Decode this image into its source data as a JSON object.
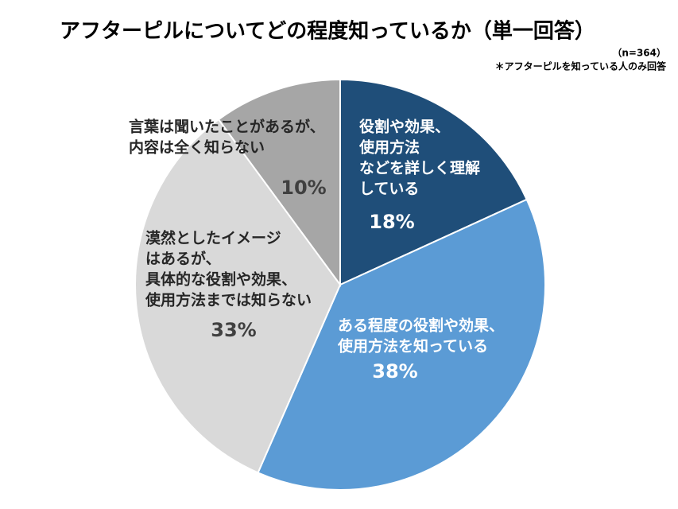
{
  "chart_data": {
    "type": "pie",
    "title": "アフターピルについてどの程度知っているか（単一回答）",
    "subtitle": [
      "（n=364）",
      "＊アフターピルを知っている人のみ回答"
    ],
    "categories": [
      [
        "役割や効果、",
        "使用方法",
        "などを詳しく理解",
        "している"
      ],
      [
        "ある程度の役割や効果、",
        "使用方法を知っている"
      ],
      [
        "漠然としたイメージ",
        "はあるが、",
        "具体的な役割や効果、",
        "使用方法までは知らない"
      ],
      [
        "言葉は聞いたことがあるが、",
        "内容は全く知らない"
      ]
    ],
    "values": [
      18,
      38,
      33,
      10
    ],
    "value_labels": [
      "18%",
      "38%",
      "33%",
      "10%"
    ],
    "colors": [
      "#1f4e79",
      "#5b9bd5",
      "#d9d9d9",
      "#a6a6a6"
    ],
    "label_colors": [
      "#ffffff",
      "#ffffff",
      "#262626",
      "#262626"
    ],
    "value_label_colors": [
      "#ffffff",
      "#ffffff",
      "#404040",
      "#404040"
    ],
    "start_angle": 0,
    "direction": "clockwise"
  }
}
